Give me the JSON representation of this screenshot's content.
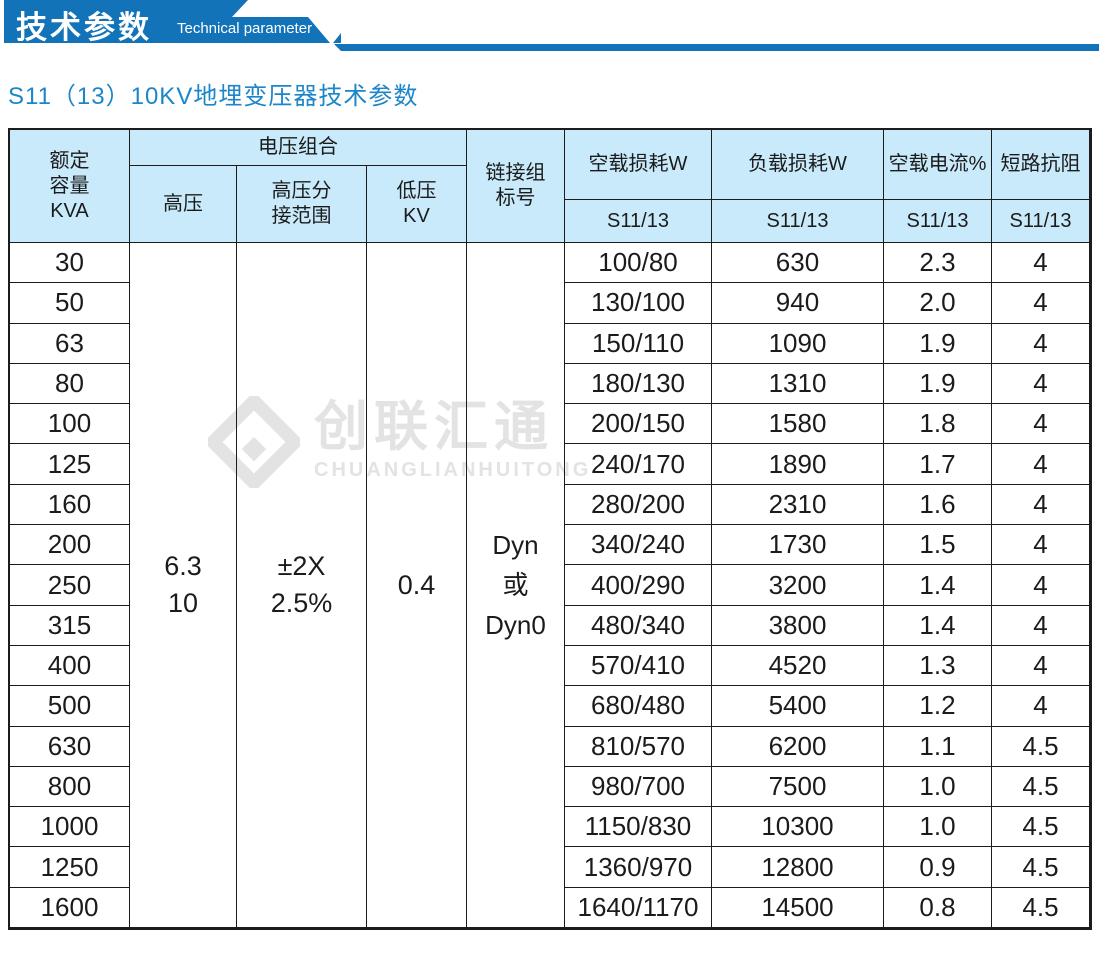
{
  "colors": {
    "accent": "#1273b8",
    "title_blue": "#1c86c8",
    "table_header_bg": "#c9eafa",
    "watermark_gray": "#e3e3e3"
  },
  "banner": {
    "title_cn": "技术参数",
    "title_en": "Technical parameter"
  },
  "page_title": "S11（13）10KV地埋变压器技术参数",
  "watermark": {
    "logo": "diamond-chevron-logo",
    "cn": "创联汇通",
    "en": "CHUANGLIANHUITONG"
  },
  "table": {
    "headers": {
      "rated_capacity": [
        "额定",
        "容量",
        "KVA"
      ],
      "voltage_group": "电压组合",
      "high_voltage": "高压",
      "tap_range": [
        "高压分",
        "接范围"
      ],
      "low_voltage": [
        "低压",
        "KV"
      ],
      "vector_group": [
        "链接组",
        "标号"
      ],
      "no_load_loss": "空载损耗W",
      "load_loss": "负载损耗W",
      "no_load_current": "空载电流%",
      "short_circuit": "短路抗阻",
      "model": "S11/13"
    },
    "merged": {
      "high_voltage": [
        "6.3",
        "10"
      ],
      "tap_range": [
        "±2X",
        "2.5%"
      ],
      "low_voltage": "0.4",
      "vector_group": [
        "Dyn",
        "或",
        "Dyn0"
      ]
    },
    "rows": [
      {
        "kva": "30",
        "no_load_loss": "100/80",
        "load_loss": "630",
        "no_load_current": "2.3",
        "short_circuit": "4"
      },
      {
        "kva": "50",
        "no_load_loss": "130/100",
        "load_loss": "940",
        "no_load_current": "2.0",
        "short_circuit": "4"
      },
      {
        "kva": "63",
        "no_load_loss": "150/110",
        "load_loss": "1090",
        "no_load_current": "1.9",
        "short_circuit": "4"
      },
      {
        "kva": "80",
        "no_load_loss": "180/130",
        "load_loss": "1310",
        "no_load_current": "1.9",
        "short_circuit": "4"
      },
      {
        "kva": "100",
        "no_load_loss": "200/150",
        "load_loss": "1580",
        "no_load_current": "1.8",
        "short_circuit": "4"
      },
      {
        "kva": "125",
        "no_load_loss": "240/170",
        "load_loss": "1890",
        "no_load_current": "1.7",
        "short_circuit": "4"
      },
      {
        "kva": "160",
        "no_load_loss": "280/200",
        "load_loss": "2310",
        "no_load_current": "1.6",
        "short_circuit": "4"
      },
      {
        "kva": "200",
        "no_load_loss": "340/240",
        "load_loss": "1730",
        "no_load_current": "1.5",
        "short_circuit": "4"
      },
      {
        "kva": "250",
        "no_load_loss": "400/290",
        "load_loss": "3200",
        "no_load_current": "1.4",
        "short_circuit": "4"
      },
      {
        "kva": "315",
        "no_load_loss": "480/340",
        "load_loss": "3800",
        "no_load_current": "1.4",
        "short_circuit": "4"
      },
      {
        "kva": "400",
        "no_load_loss": "570/410",
        "load_loss": "4520",
        "no_load_current": "1.3",
        "short_circuit": "4"
      },
      {
        "kva": "500",
        "no_load_loss": "680/480",
        "load_loss": "5400",
        "no_load_current": "1.2",
        "short_circuit": "4"
      },
      {
        "kva": "630",
        "no_load_loss": "810/570",
        "load_loss": "6200",
        "no_load_current": "1.1",
        "short_circuit": "4.5"
      },
      {
        "kva": "800",
        "no_load_loss": "980/700",
        "load_loss": "7500",
        "no_load_current": "1.0",
        "short_circuit": "4.5"
      },
      {
        "kva": "1000",
        "no_load_loss": "1150/830",
        "load_loss": "10300",
        "no_load_current": "1.0",
        "short_circuit": "4.5"
      },
      {
        "kva": "1250",
        "no_load_loss": "1360/970",
        "load_loss": "12800",
        "no_load_current": "0.9",
        "short_circuit": "4.5"
      },
      {
        "kva": "1600",
        "no_load_loss": "1640/1170",
        "load_loss": "14500",
        "no_load_current": "0.8",
        "short_circuit": "4.5"
      }
    ]
  }
}
